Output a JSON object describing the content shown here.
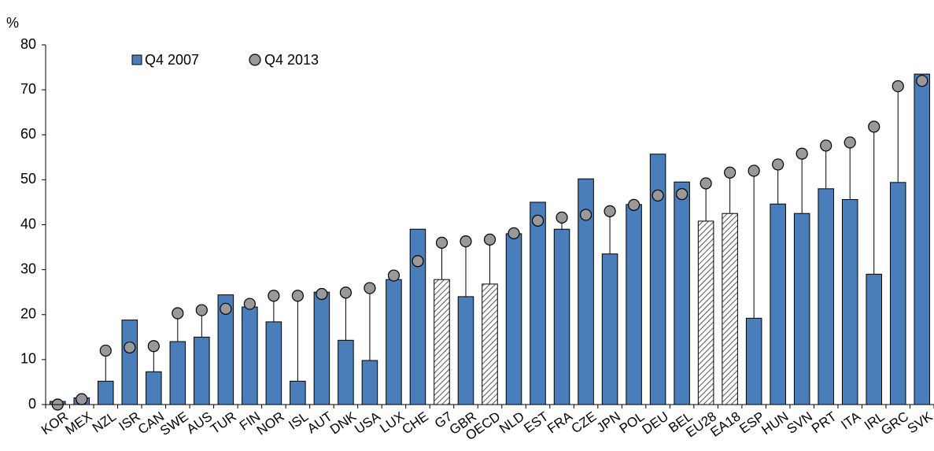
{
  "chart_data": {
    "type": "bar",
    "y_axis_label": "%",
    "categories": [
      "KOR",
      "MEX",
      "NZL",
      "ISR",
      "CAN",
      "SWE",
      "AUS",
      "TUR",
      "FIN",
      "NOR",
      "ISL",
      "AUT",
      "DNK",
      "USA",
      "LUX",
      "CHE",
      "G7",
      "GBR",
      "OECD",
      "NLD",
      "EST",
      "FRA",
      "CZE",
      "JPN",
      "POL",
      "DEU",
      "BEL",
      "EU28",
      "EA18",
      "ESP",
      "HUN",
      "SVN",
      "PRT",
      "ITA",
      "IRL",
      "GRC",
      "SVK"
    ],
    "hatched_categories": [
      "G7",
      "OECD",
      "EU28",
      "EA18"
    ],
    "series": [
      {
        "name": "Q4 2007",
        "color": "#4a7ebb",
        "values": [
          0.7,
          1.5,
          5.2,
          18.8,
          7.3,
          14,
          15,
          24.4,
          21.7,
          18.4,
          5.2,
          25,
          14.3,
          9.8,
          27.8,
          39,
          27.8,
          24,
          26.8,
          38,
          45,
          39,
          50.2,
          33.5,
          44.5,
          55.7,
          49.5,
          40.8,
          42.5,
          19.2,
          44.6,
          42.5,
          48,
          45.6,
          29,
          49.4,
          73.5
        ]
      },
      {
        "name": "Q4 2013",
        "color": "#999999",
        "marker": "circle",
        "values": [
          0,
          1.2,
          12,
          12.7,
          13,
          20.3,
          21,
          21.3,
          22.4,
          24.2,
          24.2,
          24.6,
          24.9,
          25.9,
          28.7,
          31.9,
          36,
          36.3,
          36.7,
          38.1,
          40.9,
          41.6,
          42.2,
          43,
          44.4,
          46.5,
          46.8,
          49.2,
          51.6,
          52,
          53.4,
          55.8,
          57.6,
          58.3,
          61.8,
          70.8,
          72
        ]
      }
    ],
    "ylim": [
      0,
      80
    ],
    "yticks": [
      0,
      10,
      20,
      30,
      40,
      50,
      60,
      70,
      80
    ],
    "grid": false,
    "legend": "top-left"
  }
}
